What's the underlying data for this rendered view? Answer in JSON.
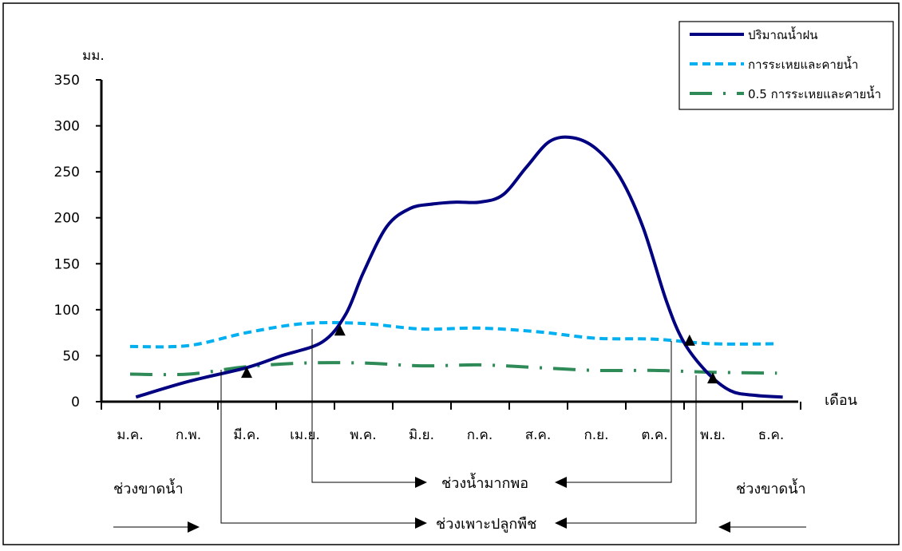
{
  "chart_data": {
    "type": "line",
    "ylabel": "มม.",
    "xlabel": "เดือน",
    "ylim": [
      0,
      350
    ],
    "yticks": [
      0,
      50,
      100,
      150,
      200,
      250,
      300,
      350
    ],
    "categories": [
      "ม.ค.",
      "ก.พ.",
      "มี.ค.",
      "เม.ย.",
      "พ.ค.",
      "มิ.ย.",
      "ก.ค.",
      "ส.ค.",
      "ก.ย.",
      "ต.ค.",
      "พ.ย.",
      "ธ.ค."
    ],
    "legend_position": "top-right",
    "series": [
      {
        "name": "ปริมาณน้ำฝน",
        "style": "solid",
        "color": "#000080",
        "points": [
          [
            0.1,
            5
          ],
          [
            1.0,
            22
          ],
          [
            2.0,
            37
          ],
          [
            2.6,
            50
          ],
          [
            3.3,
            65
          ],
          [
            3.7,
            95
          ],
          [
            4.0,
            140
          ],
          [
            4.4,
            190
          ],
          [
            4.8,
            210
          ],
          [
            5.2,
            215
          ],
          [
            5.6,
            217
          ],
          [
            6.0,
            217
          ],
          [
            6.4,
            225
          ],
          [
            6.8,
            255
          ],
          [
            7.2,
            283
          ],
          [
            7.6,
            287
          ],
          [
            8.0,
            275
          ],
          [
            8.4,
            245
          ],
          [
            8.8,
            190
          ],
          [
            9.2,
            110
          ],
          [
            9.5,
            65
          ],
          [
            9.9,
            32
          ],
          [
            10.3,
            12
          ],
          [
            10.7,
            7
          ],
          [
            11.2,
            5
          ]
        ]
      },
      {
        "name": "การระเหยและคายน้ำ",
        "style": "dashed",
        "color": "#00B0F0",
        "points": [
          [
            0.0,
            60
          ],
          [
            1.0,
            61
          ],
          [
            2.0,
            75
          ],
          [
            3.0,
            85
          ],
          [
            4.0,
            85
          ],
          [
            5.0,
            79
          ],
          [
            6.0,
            80
          ],
          [
            7.0,
            76
          ],
          [
            8.0,
            69
          ],
          [
            9.0,
            68
          ],
          [
            10.0,
            63
          ],
          [
            11.1,
            63
          ]
        ]
      },
      {
        "name": "0.5 การระเหยและคายน้ำ",
        "style": "dash-dot",
        "color": "#2E8B57",
        "points": [
          [
            0.0,
            30
          ],
          [
            1.0,
            30
          ],
          [
            2.0,
            38
          ],
          [
            3.0,
            42
          ],
          [
            4.0,
            42
          ],
          [
            5.0,
            39
          ],
          [
            6.0,
            40
          ],
          [
            7.0,
            37
          ],
          [
            8.0,
            34
          ],
          [
            9.0,
            34
          ],
          [
            10.0,
            32
          ],
          [
            11.1,
            31
          ]
        ]
      }
    ],
    "markers": [
      {
        "x": 2.0,
        "y": 32
      },
      {
        "x": 3.6,
        "y": 78
      },
      {
        "x": 9.6,
        "y": 67
      },
      {
        "x": 10.0,
        "y": 26
      }
    ],
    "annotations": {
      "deficit_left": "ช่วงขาดน้ำ",
      "deficit_right": "ช่วงขาดน้ำ",
      "surplus": "ช่วงน้ำมากพอ",
      "growing": "ช่วงเพาะปลูกพืช"
    }
  }
}
